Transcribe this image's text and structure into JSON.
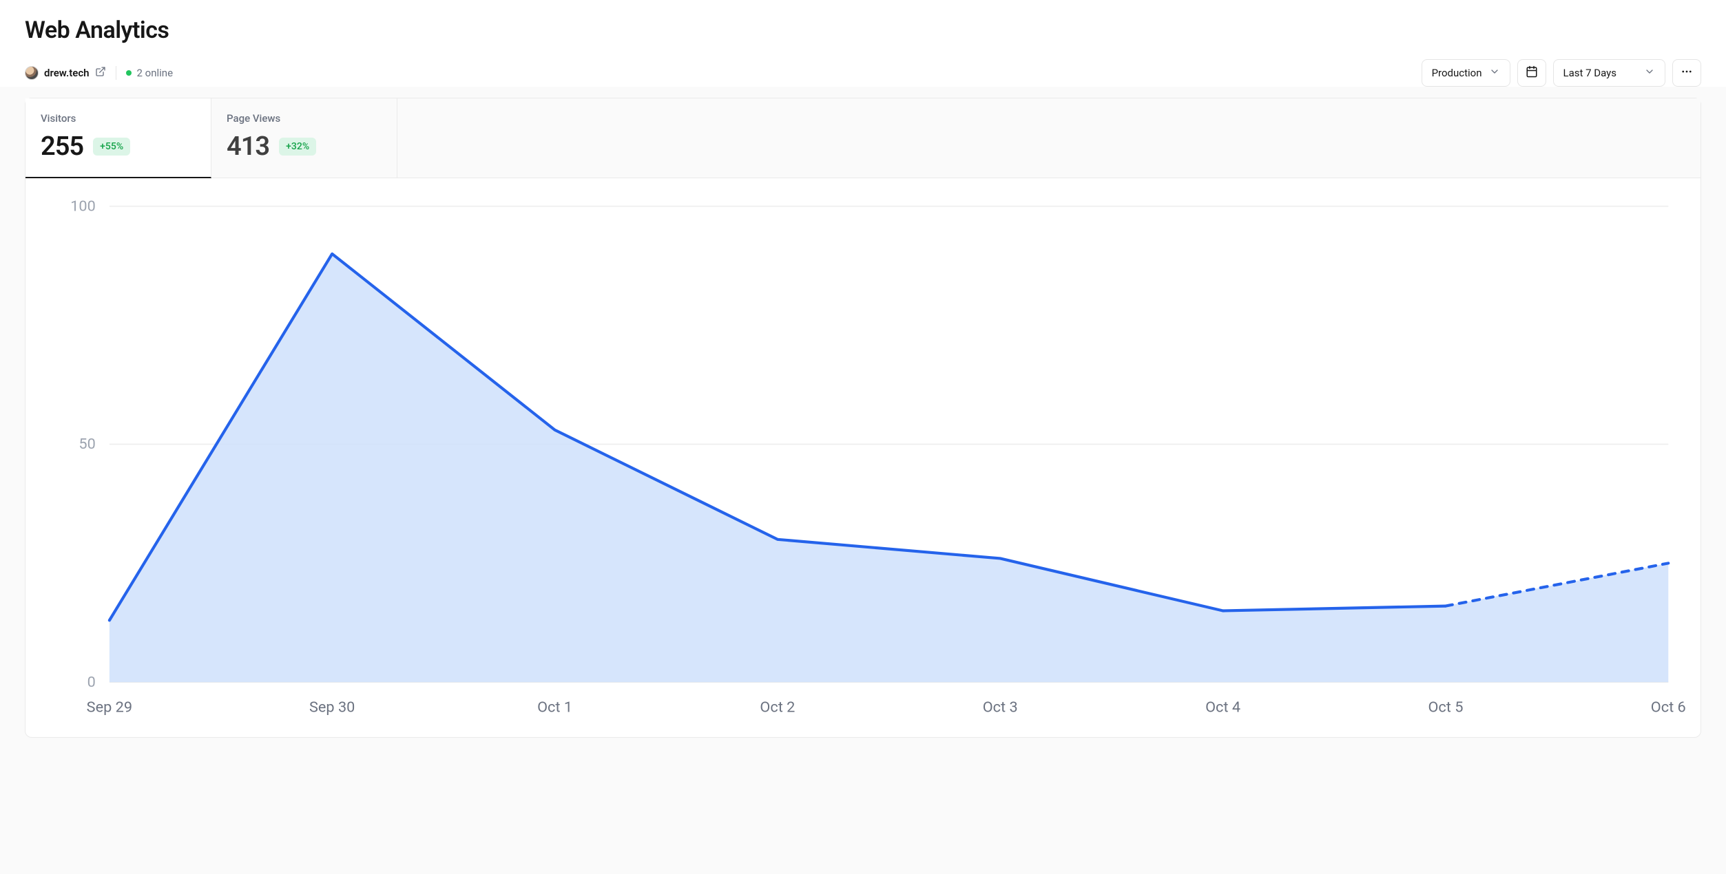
{
  "page": {
    "title": "Web Analytics"
  },
  "site": {
    "name": "drew.tech"
  },
  "status": {
    "online_count": 2,
    "online_text": "2 online",
    "dot_color": "#22c55e"
  },
  "controls": {
    "environment": "Production",
    "date_range": "Last 7 Days"
  },
  "tabs": [
    {
      "label": "Visitors",
      "value": "255",
      "delta": "+55%",
      "delta_positive": true,
      "active": true
    },
    {
      "label": "Page Views",
      "value": "413",
      "delta": "+32%",
      "delta_positive": true,
      "active": false
    }
  ],
  "chart": {
    "type": "area",
    "x_labels": [
      "Sep 29",
      "Sep 30",
      "Oct 1",
      "Oct 2",
      "Oct 3",
      "Oct 4",
      "Oct 5",
      "Oct 6"
    ],
    "values": [
      13,
      90,
      53,
      30,
      26,
      15,
      16,
      25
    ],
    "ylim": [
      0,
      100
    ],
    "yticks": [
      0,
      50,
      100
    ],
    "line_color": "#2563eb",
    "fill_color": "#cfe0fb",
    "fill_opacity": 0.85,
    "grid_color": "#eeeeee",
    "line_width": 2.5,
    "dashed_from_index": 6,
    "background_color": "#ffffff",
    "label_fontsize": 13,
    "label_color": "#6b7280",
    "ylabel_color": "#9ca3af"
  }
}
